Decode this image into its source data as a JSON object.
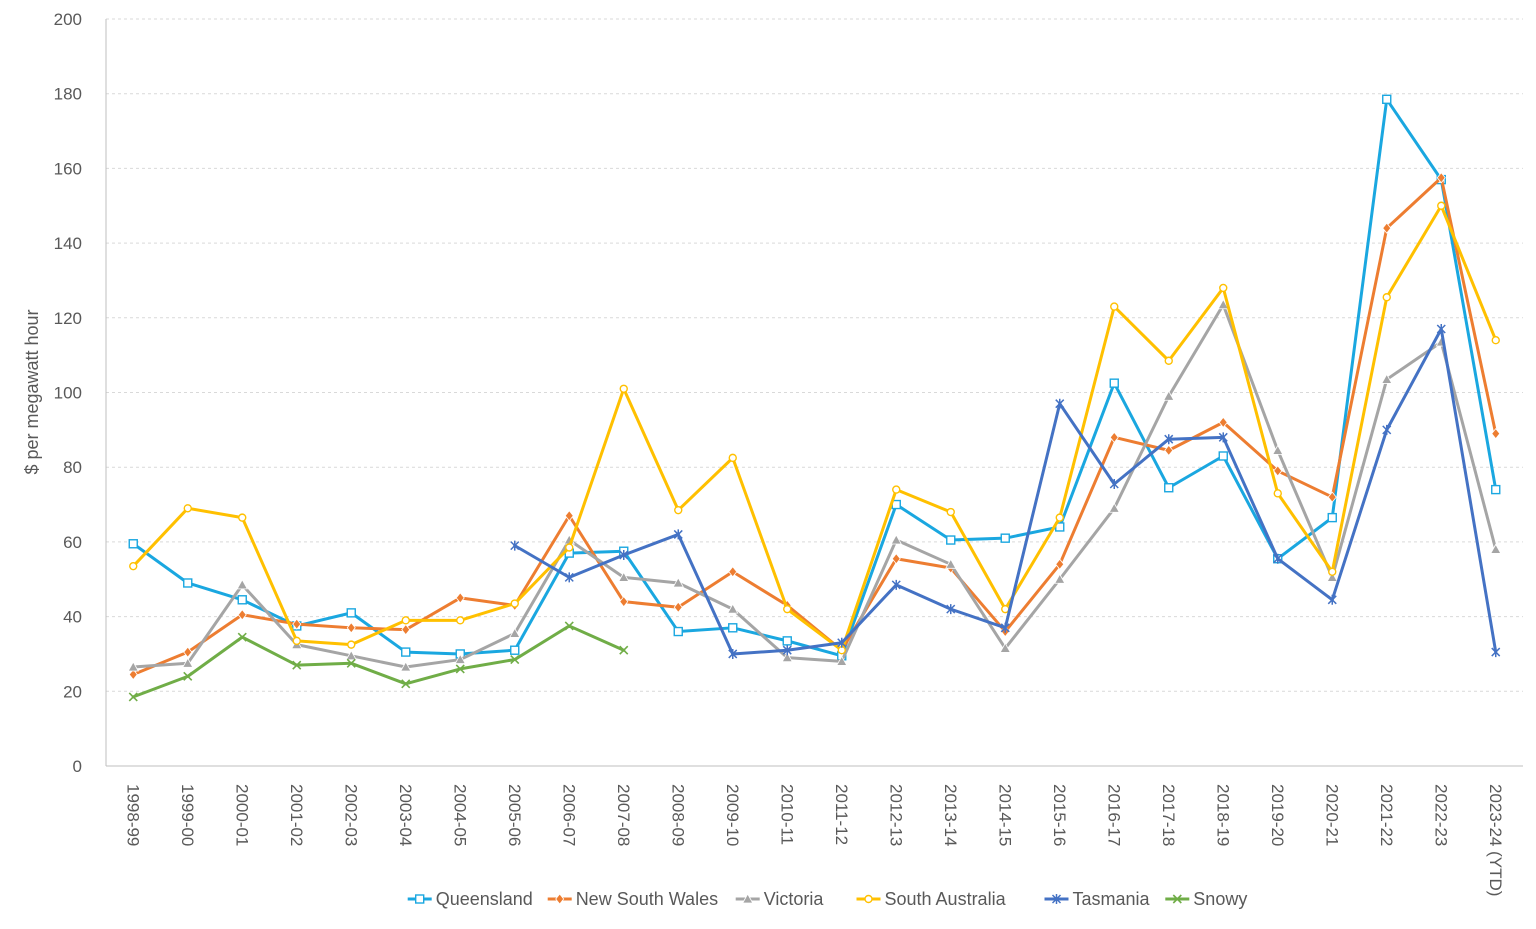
{
  "chart_data": {
    "type": "line",
    "title": "",
    "xlabel": "",
    "ylabel": "$ per megawatt hour",
    "ylim": [
      0,
      200
    ],
    "yticks": [
      0,
      20,
      40,
      60,
      80,
      100,
      120,
      140,
      160,
      180,
      200
    ],
    "grid": "horizontal dashed",
    "legend_position": "bottom",
    "categories": [
      "1998-99",
      "1999-00",
      "2000-01",
      "2001-02",
      "2002-03",
      "2003-04",
      "2004-05",
      "2005-06",
      "2006-07",
      "2007-08",
      "2008-09",
      "2009-10",
      "2010-11",
      "2011-12",
      "2012-13",
      "2013-14",
      "2014-15",
      "2015-16",
      "2016-17",
      "2017-18",
      "2018-19",
      "2019-20",
      "2020-21",
      "2021-22",
      "2022-23",
      "2023-24 (YTD)"
    ],
    "series": [
      {
        "name": "Queensland",
        "color": "#1aa7e0",
        "marker": "square",
        "values": [
          59.5,
          49,
          44.5,
          37.5,
          41,
          30.5,
          30,
          31,
          57,
          57.5,
          36,
          37,
          33.5,
          29.5,
          70,
          60.5,
          61,
          64,
          102.5,
          74.5,
          83,
          55.5,
          66.5,
          178.5,
          157,
          74
        ]
      },
      {
        "name": "New South Wales",
        "color": "#ed7d31",
        "marker": "diamond",
        "values": [
          24.5,
          30.5,
          40.5,
          38,
          37,
          36.5,
          45,
          43,
          67,
          44,
          42.5,
          52,
          43,
          31,
          55.5,
          53,
          36,
          54,
          88,
          84.5,
          92,
          79,
          72,
          144,
          157.5,
          89
        ]
      },
      {
        "name": "Victoria",
        "color": "#a5a5a5",
        "marker": "triangle",
        "values": [
          26.5,
          27.5,
          48.5,
          32.5,
          29.5,
          26.5,
          28.5,
          35.5,
          60.5,
          50.5,
          49,
          42,
          29,
          28,
          60.5,
          54,
          31.5,
          50,
          69,
          99,
          123.5,
          84.5,
          50.5,
          103.5,
          113.5,
          58
        ]
      },
      {
        "name": "South Australia",
        "color": "#ffc000",
        "marker": "circle",
        "values": [
          53.5,
          69,
          66.5,
          33.5,
          32.5,
          39,
          39,
          43.5,
          58.5,
          101,
          68.5,
          82.5,
          42,
          31,
          74,
          68,
          42,
          66.5,
          123,
          108.5,
          128,
          73,
          52,
          125.5,
          150,
          114
        ]
      },
      {
        "name": "Tasmania",
        "color": "#4472c4",
        "marker": "star",
        "values": [
          null,
          null,
          null,
          null,
          null,
          null,
          null,
          59,
          50.5,
          56.5,
          62,
          30,
          31,
          33,
          48.5,
          42,
          37,
          97,
          75.5,
          87.5,
          88,
          55.5,
          44.5,
          90,
          117,
          30.5
        ]
      },
      {
        "name": "Snowy",
        "color": "#70ad47",
        "marker": "x",
        "values": [
          18.5,
          24,
          34.5,
          27,
          27.5,
          22,
          26,
          28.5,
          37.5,
          31,
          null,
          null,
          null,
          null,
          null,
          null,
          null,
          null,
          null,
          null,
          null,
          null,
          null,
          null,
          null,
          null
        ]
      }
    ]
  }
}
